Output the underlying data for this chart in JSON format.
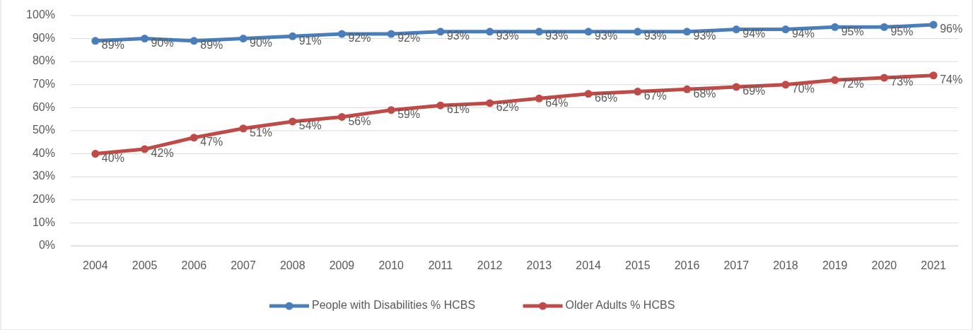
{
  "chart_data": {
    "type": "line",
    "categories": [
      "2004",
      "2005",
      "2006",
      "2007",
      "2008",
      "2009",
      "2010",
      "2011",
      "2012",
      "2013",
      "2014",
      "2015",
      "2016",
      "2017",
      "2018",
      "2019",
      "2020",
      "2021"
    ],
    "series": [
      {
        "name": "People with Disabilities % HCBS",
        "color": "#4a7ebb",
        "values": [
          89,
          90,
          89,
          90,
          91,
          92,
          92,
          93,
          93,
          93,
          93,
          93,
          93,
          94,
          94,
          95,
          95,
          96
        ],
        "value_labels": [
          "89%",
          "90%",
          "89%",
          "90%",
          "91%",
          "92%",
          "92%",
          "93%",
          "93%",
          "93%",
          "93%",
          "93%",
          "93%",
          "94%",
          "94%",
          "95%",
          "95%",
          "96%"
        ]
      },
      {
        "name": "Older Adults % HCBS",
        "color": "#be4b48",
        "values": [
          40,
          42,
          47,
          51,
          54,
          56,
          59,
          61,
          62,
          64,
          66,
          67,
          68,
          69,
          70,
          72,
          73,
          74
        ],
        "value_labels": [
          "40%",
          "42%",
          "47%",
          "51%",
          "54%",
          "56%",
          "59%",
          "61%",
          "62%",
          "64%",
          "66%",
          "67%",
          "68%",
          "69%",
          "70%",
          "72%",
          "73%",
          "74%"
        ]
      }
    ],
    "ylim": [
      0,
      100
    ],
    "yticks": [
      {
        "value": 0,
        "label": "0%"
      },
      {
        "value": 10,
        "label": "10%"
      },
      {
        "value": 20,
        "label": "20%"
      },
      {
        "value": 30,
        "label": "30%"
      },
      {
        "value": 40,
        "label": "40%"
      },
      {
        "value": 50,
        "label": "50%"
      },
      {
        "value": 60,
        "label": "60%"
      },
      {
        "value": 70,
        "label": "70%"
      },
      {
        "value": 80,
        "label": "80%"
      },
      {
        "value": 90,
        "label": "90%"
      },
      {
        "value": 100,
        "label": "100%"
      }
    ],
    "grid": true,
    "marker": "circle",
    "legend": "bottom"
  }
}
